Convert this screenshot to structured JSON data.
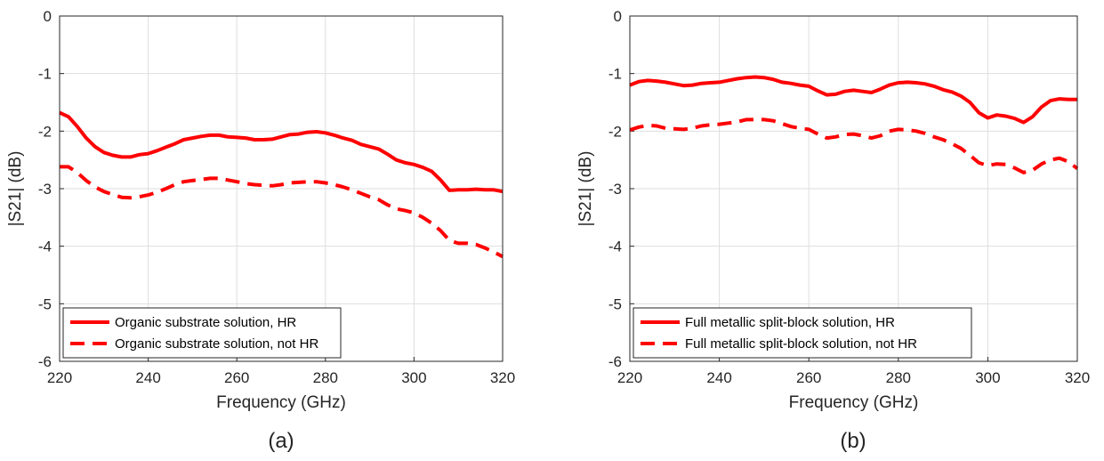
{
  "colors": {
    "series": "#ff0000",
    "grid": "#dedede",
    "axis": "#262626"
  },
  "chart_data": [
    {
      "type": "line",
      "panel_label": "(a)",
      "xlabel": "Frequency (GHz)",
      "ylabel": "|S21| (dB)",
      "xlim": [
        220,
        320
      ],
      "ylim": [
        -6,
        0
      ],
      "xticks": [
        "220",
        "240",
        "260",
        "280",
        "300",
        "320"
      ],
      "yticks": [
        "-6",
        "-5",
        "-4",
        "-3",
        "-2",
        "-1",
        "0"
      ],
      "grid": true,
      "legend_position": "bottom-left",
      "series": [
        {
          "name": "Organic substrate solution, HR",
          "style": "solid",
          "x": [
            220,
            222,
            224,
            226,
            228,
            230,
            232,
            234,
            236,
            238,
            240,
            242,
            244,
            246,
            248,
            250,
            252,
            254,
            256,
            258,
            260,
            262,
            264,
            266,
            268,
            270,
            272,
            274,
            276,
            278,
            280,
            282,
            284,
            286,
            288,
            290,
            292,
            294,
            296,
            298,
            300,
            302,
            304,
            306,
            308,
            310,
            312,
            314,
            316,
            318,
            320
          ],
          "y": [
            -1.68,
            -1.75,
            -1.92,
            -2.12,
            -2.27,
            -2.37,
            -2.42,
            -2.45,
            -2.45,
            -2.41,
            -2.39,
            -2.34,
            -2.28,
            -2.22,
            -2.15,
            -2.12,
            -2.09,
            -2.07,
            -2.07,
            -2.1,
            -2.11,
            -2.12,
            -2.15,
            -2.15,
            -2.14,
            -2.1,
            -2.06,
            -2.05,
            -2.02,
            -2.01,
            -2.03,
            -2.07,
            -2.12,
            -2.16,
            -2.23,
            -2.27,
            -2.31,
            -2.4,
            -2.5,
            -2.55,
            -2.58,
            -2.63,
            -2.7,
            -2.85,
            -3.03,
            -3.02,
            -3.02,
            -3.01,
            -3.02,
            -3.02,
            -3.05
          ]
        },
        {
          "name": "Organic substrate solution, not HR",
          "style": "dashed",
          "x": [
            220,
            222,
            224,
            226,
            228,
            230,
            232,
            234,
            236,
            238,
            240,
            242,
            244,
            246,
            248,
            250,
            252,
            254,
            256,
            258,
            260,
            262,
            264,
            266,
            268,
            270,
            272,
            274,
            276,
            278,
            280,
            282,
            284,
            286,
            288,
            290,
            292,
            294,
            296,
            298,
            300,
            302,
            304,
            306,
            308,
            310,
            312,
            314,
            316,
            318,
            320
          ],
          "y": [
            -2.62,
            -2.62,
            -2.72,
            -2.86,
            -2.97,
            -3.05,
            -3.1,
            -3.15,
            -3.16,
            -3.14,
            -3.11,
            -3.06,
            -3.0,
            -2.93,
            -2.88,
            -2.86,
            -2.84,
            -2.82,
            -2.82,
            -2.85,
            -2.88,
            -2.91,
            -2.93,
            -2.94,
            -2.95,
            -2.93,
            -2.9,
            -2.89,
            -2.88,
            -2.88,
            -2.9,
            -2.93,
            -2.97,
            -3.02,
            -3.08,
            -3.14,
            -3.19,
            -3.28,
            -3.35,
            -3.38,
            -3.42,
            -3.5,
            -3.6,
            -3.73,
            -3.9,
            -3.95,
            -3.95,
            -3.97,
            -4.03,
            -4.1,
            -4.18
          ]
        }
      ]
    },
    {
      "type": "line",
      "panel_label": "(b)",
      "xlabel": "Frequency (GHz)",
      "ylabel": "|S21| (dB)",
      "xlim": [
        220,
        320
      ],
      "ylim": [
        -6,
        0
      ],
      "xticks": [
        "220",
        "240",
        "260",
        "280",
        "300",
        "320"
      ],
      "yticks": [
        "-6",
        "-5",
        "-4",
        "-3",
        "-2",
        "-1",
        "0"
      ],
      "grid": true,
      "legend_position": "bottom-left",
      "series": [
        {
          "name": "Full metallic split-block solution, HR",
          "style": "solid",
          "x": [
            220,
            222,
            224,
            226,
            228,
            230,
            232,
            234,
            236,
            238,
            240,
            242,
            244,
            246,
            248,
            250,
            252,
            254,
            256,
            258,
            260,
            262,
            264,
            266,
            268,
            270,
            272,
            274,
            276,
            278,
            280,
            282,
            284,
            286,
            288,
            290,
            292,
            294,
            296,
            298,
            300,
            302,
            304,
            306,
            308,
            310,
            312,
            314,
            316,
            318,
            320
          ],
          "y": [
            -1.2,
            -1.14,
            -1.12,
            -1.13,
            -1.15,
            -1.18,
            -1.21,
            -1.2,
            -1.17,
            -1.16,
            -1.15,
            -1.12,
            -1.09,
            -1.07,
            -1.06,
            -1.07,
            -1.1,
            -1.15,
            -1.17,
            -1.2,
            -1.22,
            -1.3,
            -1.37,
            -1.36,
            -1.31,
            -1.29,
            -1.31,
            -1.33,
            -1.27,
            -1.2,
            -1.16,
            -1.15,
            -1.16,
            -1.18,
            -1.22,
            -1.28,
            -1.32,
            -1.39,
            -1.5,
            -1.68,
            -1.77,
            -1.72,
            -1.74,
            -1.78,
            -1.85,
            -1.75,
            -1.58,
            -1.47,
            -1.44,
            -1.45,
            -1.45
          ]
        },
        {
          "name": "Full metallic split-block solution, not HR",
          "style": "dashed",
          "x": [
            220,
            222,
            224,
            226,
            228,
            230,
            232,
            234,
            236,
            238,
            240,
            242,
            244,
            246,
            248,
            250,
            252,
            254,
            256,
            258,
            260,
            262,
            264,
            266,
            268,
            270,
            272,
            274,
            276,
            278,
            280,
            282,
            284,
            286,
            288,
            290,
            292,
            294,
            296,
            298,
            300,
            302,
            304,
            306,
            308,
            310,
            312,
            314,
            316,
            318,
            320
          ],
          "y": [
            -1.98,
            -1.93,
            -1.9,
            -1.91,
            -1.95,
            -1.96,
            -1.97,
            -1.95,
            -1.91,
            -1.89,
            -1.88,
            -1.86,
            -1.84,
            -1.8,
            -1.8,
            -1.8,
            -1.82,
            -1.87,
            -1.92,
            -1.95,
            -1.97,
            -2.05,
            -2.12,
            -2.1,
            -2.06,
            -2.05,
            -2.08,
            -2.12,
            -2.08,
            -2.0,
            -1.97,
            -1.98,
            -2.0,
            -2.04,
            -2.1,
            -2.15,
            -2.22,
            -2.3,
            -2.42,
            -2.55,
            -2.6,
            -2.57,
            -2.58,
            -2.64,
            -2.72,
            -2.68,
            -2.57,
            -2.5,
            -2.47,
            -2.53,
            -2.65
          ]
        }
      ]
    }
  ]
}
